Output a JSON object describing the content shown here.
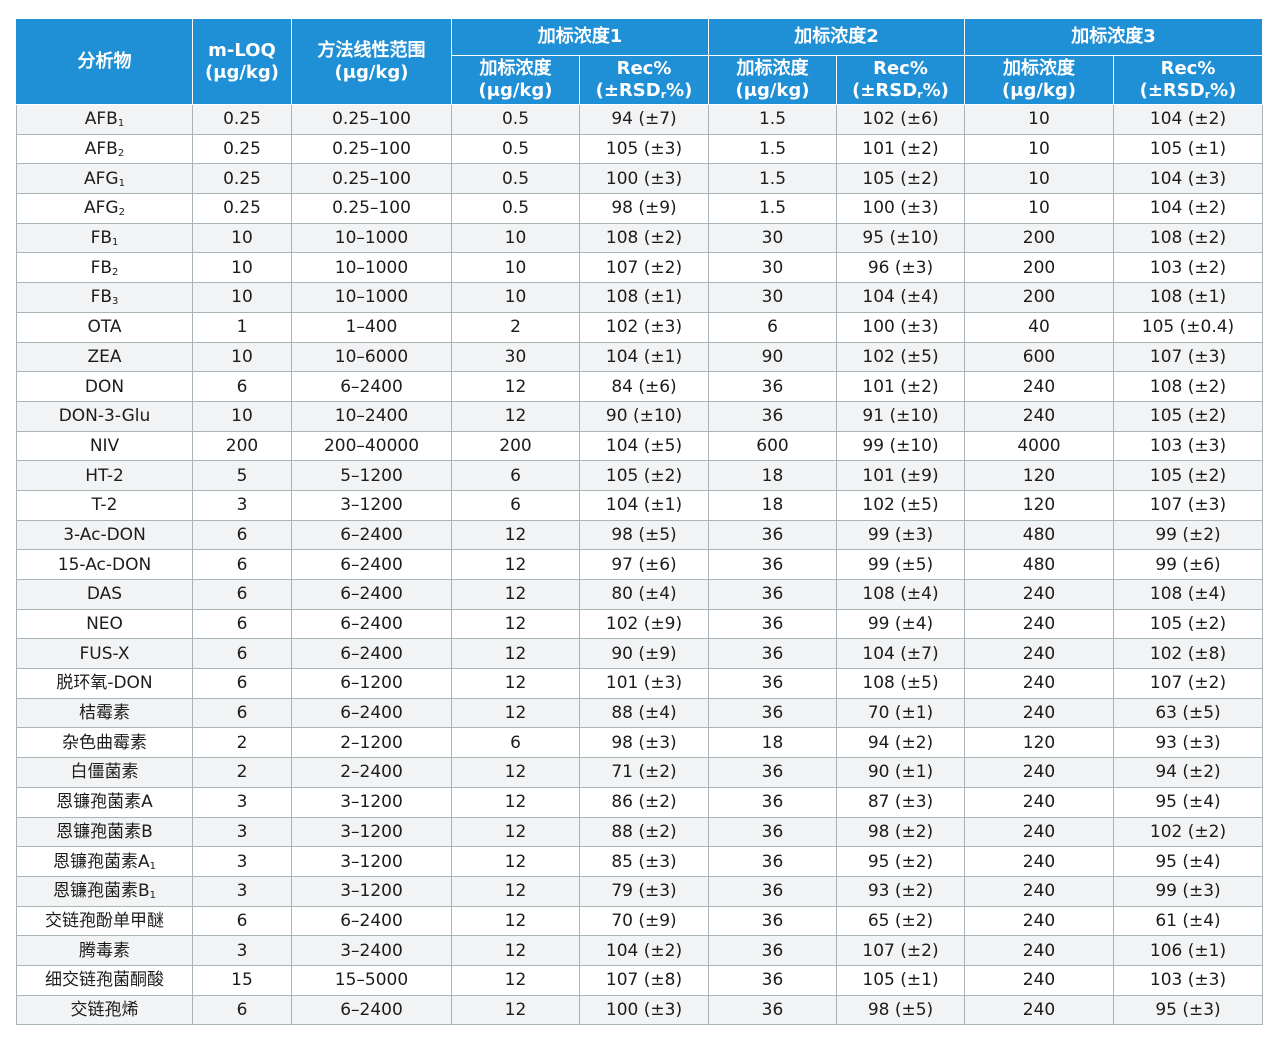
{
  "headers": {
    "analyte": "分析物",
    "mloq": "m-LOQ",
    "mloq_unit": "(μg/kg)",
    "range": "方法线性范围",
    "range_unit": "(μg/kg)",
    "spike1": "加标浓度1",
    "spike2": "加标浓度2",
    "spike3": "加标浓度3",
    "conc": "加标浓度",
    "conc_unit": "(μg/kg)",
    "rec": "Rec%",
    "rec_unit_pre": "(±RSD",
    "rec_unit_sub": "r",
    "rec_unit_post": "%)"
  },
  "rows": [
    {
      "name": "AFB",
      "sub": "1",
      "mloq": "0.25",
      "range": "0.25–100",
      "c1": "0.5",
      "r1": "94 (±7)",
      "c2": "1.5",
      "r2": "102 (±6)",
      "c3": "10",
      "r3": "104 (±2)"
    },
    {
      "name": "AFB",
      "sub": "2",
      "mloq": "0.25",
      "range": "0.25–100",
      "c1": "0.5",
      "r1": "105 (±3)",
      "c2": "1.5",
      "r2": "101 (±2)",
      "c3": "10",
      "r3": "105 (±1)"
    },
    {
      "name": "AFG",
      "sub": "1",
      "mloq": "0.25",
      "range": "0.25–100",
      "c1": "0.5",
      "r1": "100 (±3)",
      "c2": "1.5",
      "r2": "105 (±2)",
      "c3": "10",
      "r3": "104 (±3)"
    },
    {
      "name": "AFG",
      "sub": "2",
      "mloq": "0.25",
      "range": "0.25–100",
      "c1": "0.5",
      "r1": "98 (±9)",
      "c2": "1.5",
      "r2": "100 (±3)",
      "c3": "10",
      "r3": "104 (±2)"
    },
    {
      "name": "FB",
      "sub": "1",
      "mloq": "10",
      "range": "10–1000",
      "c1": "10",
      "r1": "108 (±2)",
      "c2": "30",
      "r2": "95 (±10)",
      "c3": "200",
      "r3": "108 (±2)"
    },
    {
      "name": "FB",
      "sub": "2",
      "mloq": "10",
      "range": "10–1000",
      "c1": "10",
      "r1": "107 (±2)",
      "c2": "30",
      "r2": "96 (±3)",
      "c3": "200",
      "r3": "103 (±2)"
    },
    {
      "name": "FB",
      "sub": "3",
      "mloq": "10",
      "range": "10–1000",
      "c1": "10",
      "r1": "108 (±1)",
      "c2": "30",
      "r2": "104 (±4)",
      "c3": "200",
      "r3": "108 (±1)"
    },
    {
      "name": "OTA",
      "sub": "",
      "mloq": "1",
      "range": "1–400",
      "c1": "2",
      "r1": "102 (±3)",
      "c2": "6",
      "r2": "100 (±3)",
      "c3": "40",
      "r3": "105 (±0.4)"
    },
    {
      "name": "ZEA",
      "sub": "",
      "mloq": "10",
      "range": "10–6000",
      "c1": "30",
      "r1": "104 (±1)",
      "c2": "90",
      "r2": "102 (±5)",
      "c3": "600",
      "r3": "107 (±3)"
    },
    {
      "name": "DON",
      "sub": "",
      "mloq": "6",
      "range": "6–2400",
      "c1": "12",
      "r1": "84 (±6)",
      "c2": "36",
      "r2": "101 (±2)",
      "c3": "240",
      "r3": "108 (±2)"
    },
    {
      "name": "DON-3-Glu",
      "sub": "",
      "mloq": "10",
      "range": "10–2400",
      "c1": "12",
      "r1": "90 (±10)",
      "c2": "36",
      "r2": "91 (±10)",
      "c3": "240",
      "r3": "105 (±2)"
    },
    {
      "name": "NIV",
      "sub": "",
      "mloq": "200",
      "range": "200–40000",
      "c1": "200",
      "r1": "104 (±5)",
      "c2": "600",
      "r2": "99 (±10)",
      "c3": "4000",
      "r3": "103 (±3)"
    },
    {
      "name": "HT-2",
      "sub": "",
      "mloq": "5",
      "range": "5–1200",
      "c1": "6",
      "r1": "105 (±2)",
      "c2": "18",
      "r2": "101 (±9)",
      "c3": "120",
      "r3": "105 (±2)"
    },
    {
      "name": "T-2",
      "sub": "",
      "mloq": "3",
      "range": "3–1200",
      "c1": "6",
      "r1": "104 (±1)",
      "c2": "18",
      "r2": "102 (±5)",
      "c3": "120",
      "r3": "107 (±3)"
    },
    {
      "name": "3-Ac-DON",
      "sub": "",
      "mloq": "6",
      "range": "6–2400",
      "c1": "12",
      "r1": "98 (±5)",
      "c2": "36",
      "r2": "99 (±3)",
      "c3": "480",
      "r3": "99 (±2)"
    },
    {
      "name": "15-Ac-DON",
      "sub": "",
      "mloq": "6",
      "range": "6–2400",
      "c1": "12",
      "r1": "97 (±6)",
      "c2": "36",
      "r2": "99 (±5)",
      "c3": "480",
      "r3": "99 (±6)"
    },
    {
      "name": "DAS",
      "sub": "",
      "mloq": "6",
      "range": "6–2400",
      "c1": "12",
      "r1": "80 (±4)",
      "c2": "36",
      "r2": "108 (±4)",
      "c3": "240",
      "r3": "108 (±4)"
    },
    {
      "name": "NEO",
      "sub": "",
      "mloq": "6",
      "range": "6–2400",
      "c1": "12",
      "r1": "102 (±9)",
      "c2": "36",
      "r2": "99 (±4)",
      "c3": "240",
      "r3": "105 (±2)"
    },
    {
      "name": "FUS-X",
      "sub": "",
      "mloq": "6",
      "range": "6–2400",
      "c1": "12",
      "r1": "90 (±9)",
      "c2": "36",
      "r2": "104 (±7)",
      "c3": "240",
      "r3": "102 (±8)"
    },
    {
      "name": "脱环氧-DON",
      "sub": "",
      "mloq": "6",
      "range": "6–1200",
      "c1": "12",
      "r1": "101 (±3)",
      "c2": "36",
      "r2": "108 (±5)",
      "c3": "240",
      "r3": "107 (±2)"
    },
    {
      "name": "桔霉素",
      "sub": "",
      "mloq": "6",
      "range": "6–2400",
      "c1": "12",
      "r1": "88 (±4)",
      "c2": "36",
      "r2": "70 (±1)",
      "c3": "240",
      "r3": "63 (±5)"
    },
    {
      "name": "杂色曲霉素",
      "sub": "",
      "mloq": "2",
      "range": "2–1200",
      "c1": "6",
      "r1": "98 (±3)",
      "c2": "18",
      "r2": "94 (±2)",
      "c3": "120",
      "r3": "93 (±3)"
    },
    {
      "name": "白僵菌素",
      "sub": "",
      "mloq": "2",
      "range": "2–2400",
      "c1": "12",
      "r1": "71 (±2)",
      "c2": "36",
      "r2": "90 (±1)",
      "c3": "240",
      "r3": "94 (±2)"
    },
    {
      "name": "恩镰孢菌素A",
      "sub": "",
      "mloq": "3",
      "range": "3–1200",
      "c1": "12",
      "r1": "86 (±2)",
      "c2": "36",
      "r2": "87 (±3)",
      "c3": "240",
      "r3": "95 (±4)"
    },
    {
      "name": "恩镰孢菌素B",
      "sub": "",
      "mloq": "3",
      "range": "3–1200",
      "c1": "12",
      "r1": "88 (±2)",
      "c2": "36",
      "r2": "98 (±2)",
      "c3": "240",
      "r3": "102 (±2)"
    },
    {
      "name": "恩镰孢菌素A",
      "sub": "1",
      "mloq": "3",
      "range": "3–1200",
      "c1": "12",
      "r1": "85 (±3)",
      "c2": "36",
      "r2": "95 (±2)",
      "c3": "240",
      "r3": "95 (±4)"
    },
    {
      "name": "恩镰孢菌素B",
      "sub": "1",
      "mloq": "3",
      "range": "3–1200",
      "c1": "12",
      "r1": "79 (±3)",
      "c2": "36",
      "r2": "93 (±2)",
      "c3": "240",
      "r3": "99 (±3)"
    },
    {
      "name": "交链孢酚单甲醚",
      "sub": "",
      "mloq": "6",
      "range": "6–2400",
      "c1": "12",
      "r1": "70 (±9)",
      "c2": "36",
      "r2": "65 (±2)",
      "c3": "240",
      "r3": "61 (±4)"
    },
    {
      "name": "腾毒素",
      "sub": "",
      "mloq": "3",
      "range": "3–2400",
      "c1": "12",
      "r1": "104 (±2)",
      "c2": "36",
      "r2": "107 (±2)",
      "c3": "240",
      "r3": "106 (±1)"
    },
    {
      "name": "细交链孢菌酮酸",
      "sub": "",
      "mloq": "15",
      "range": "15–5000",
      "c1": "12",
      "r1": "107 (±8)",
      "c2": "36",
      "r2": "105 (±1)",
      "c3": "240",
      "r3": "103 (±3)"
    },
    {
      "name": "交链孢烯",
      "sub": "",
      "mloq": "6",
      "range": "6–2400",
      "c1": "12",
      "r1": "100 (±3)",
      "c2": "36",
      "r2": "98 (±5)",
      "c3": "240",
      "r3": "95 (±3)"
    }
  ]
}
